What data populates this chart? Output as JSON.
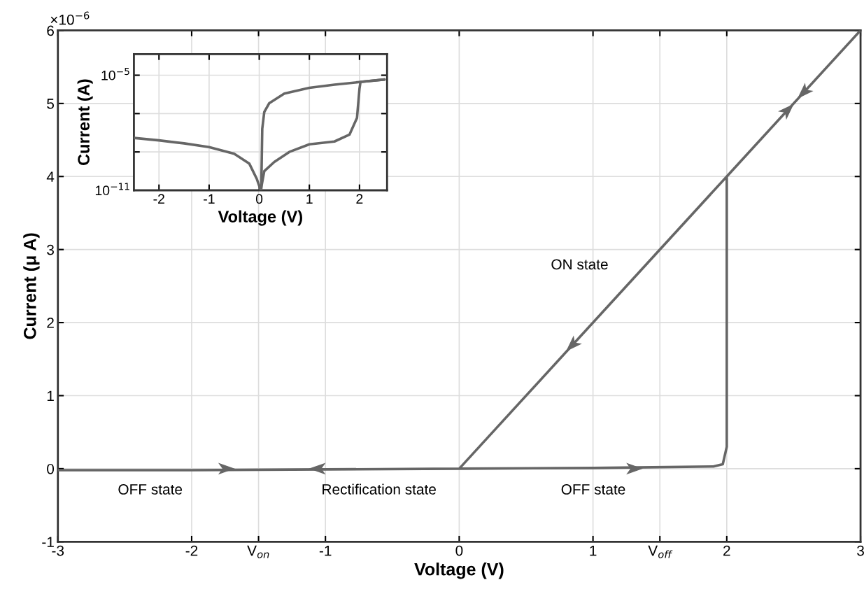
{
  "chart_data": [
    {
      "type": "line",
      "xlabel": "Voltage (V)",
      "ylabel": "Current (μ A)",
      "xlim": [
        -3,
        3
      ],
      "ylim": [
        -1,
        6
      ],
      "xticks": [
        -3,
        -2,
        {
          "value": -1.5,
          "label": "V$_{on}$"
        },
        -1,
        0,
        1,
        {
          "value": 1.5,
          "label": "V$_{off}$"
        },
        2,
        3
      ],
      "yticks": [
        -1,
        0,
        1,
        2,
        3,
        4,
        5,
        6
      ],
      "grid": true,
      "series": [
        {
          "color": "#666666",
          "x": [
            -3,
            -2,
            -1,
            0,
            1,
            1.9,
            1.97,
            2.0,
            2.0,
            3,
            0
          ],
          "values": [
            -0.02,
            -0.02,
            -0.01,
            0,
            0.01,
            0.03,
            0.06,
            0.3,
            4,
            6,
            0
          ]
        }
      ],
      "annotations": [
        "×10$^{−6}$",
        "ON state",
        "OFF state",
        "Rectification state",
        "OFF state"
      ]
    },
    {
      "type": "line",
      "xlabel": "Voltage (V)",
      "ylabel": "Current (A)",
      "log": "y",
      "xlim": [
        -2.5,
        2.55
      ],
      "ylim": [
        1e-11,
        0.000126
      ],
      "xticks": [
        -2,
        -1,
        0,
        1,
        2
      ],
      "yticks": [
        {
          "value": 1e-11,
          "label": "10$^{−11}$"
        },
        {
          "value": 1e-09,
          "label": null
        },
        {
          "value": 1e-07,
          "label": null
        },
        {
          "value": 1e-05,
          "label": "10$^{−5}$"
        }
      ],
      "grid": true,
      "series": [
        {
          "color": "#666666",
          "x": [
            -2.5,
            -2,
            -1.5,
            -1,
            -0.5,
            -0.2,
            -0.05,
            0.03,
            0.1,
            0.3,
            0.6,
            1,
            1.5,
            1.8,
            1.95,
            2.0,
            2.02,
            2.5
          ],
          "values": [
            5.4e-09,
            4e-09,
            2.8e-09,
            1.8e-09,
            8e-10,
            2.5e-10,
            4e-11,
            1e-11,
            1e-10,
            3e-10,
            1e-09,
            2.5e-09,
            3.5e-09,
            8e-09,
            6e-08,
            2e-06,
            4.5e-06,
            6e-06
          ]
        },
        {
          "color": "#666666",
          "x": [
            2.5,
            2,
            1.5,
            1,
            0.5,
            0.2,
            0.1,
            0.06,
            0.04
          ],
          "values": [
            6e-06,
            4.4e-06,
            3.2e-06,
            2.2e-06,
            1.1e-06,
            3.5e-07,
            1.2e-07,
            1.6e-08,
            1e-11
          ]
        }
      ]
    }
  ]
}
